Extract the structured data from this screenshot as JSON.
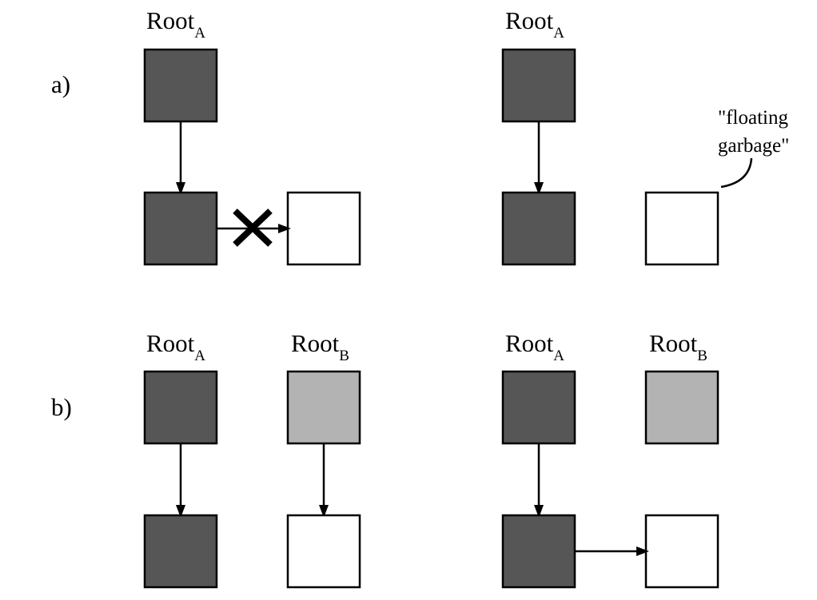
{
  "diagram": {
    "row_a": {
      "label": "a)",
      "before": {
        "root_a": {
          "name": "Root",
          "sub": "A"
        }
      },
      "after": {
        "root_a": {
          "name": "Root",
          "sub": "A"
        },
        "annotation": {
          "line1": "\"floating",
          "line2": "garbage\""
        }
      }
    },
    "row_b": {
      "label": "b)",
      "before": {
        "root_a": {
          "name": "Root",
          "sub": "A"
        },
        "root_b": {
          "name": "Root",
          "sub": "B"
        }
      },
      "after": {
        "root_a": {
          "name": "Root",
          "sub": "A"
        },
        "root_b": {
          "name": "Root",
          "sub": "B"
        }
      }
    }
  },
  "colors": {
    "black": "#555655",
    "gray": "#b3b3b3",
    "white": "#ffffff",
    "stroke": "#000000"
  }
}
